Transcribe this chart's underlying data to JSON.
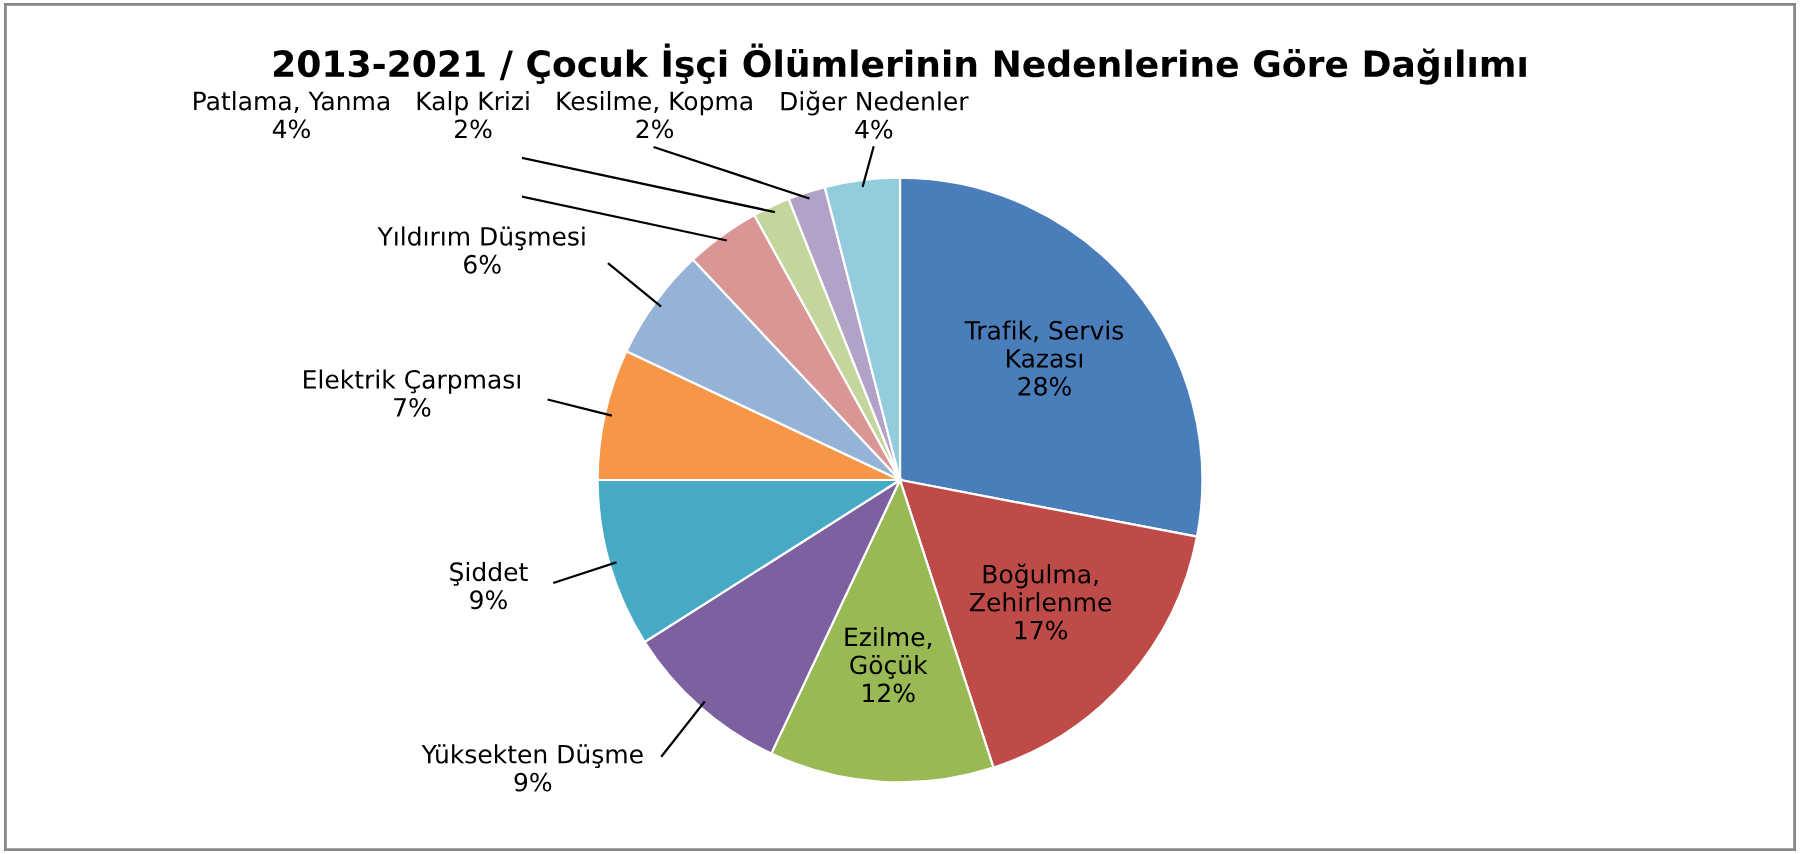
{
  "chart_data": {
    "type": "pie",
    "title": "2013-2021 / Çocuk İşçi Ölümlerinin Nedenlerine Göre Dağılımı",
    "categories": [
      "Trafik, Servis Kazası",
      "Boğulma, Zehirlenme",
      "Ezilme, Göçük",
      "Yüksekten Düşme",
      "Şiddet",
      "Elektrik Çarpması",
      "Yıldırım Düşmesi",
      "Patlama, Yanma",
      "Kalp Krizi",
      "Kesilme, Kopma",
      "Diğer Nedenler"
    ],
    "values": [
      28,
      17,
      12,
      9,
      9,
      7,
      6,
      4,
      2,
      2,
      4
    ],
    "value_labels": [
      "28%",
      "17%",
      "12%",
      "9%",
      "9%",
      "7%",
      "6%",
      "4%",
      "2%",
      "2%",
      "4%"
    ],
    "colors": [
      "#4a7ebb",
      "#be4b48",
      "#98b954",
      "#7d60a0",
      "#46aac5",
      "#f79646",
      "#95b3d7",
      "#d99694",
      "#c3d69b",
      "#b3a2c7",
      "#93cddd"
    ],
    "legend": false
  }
}
